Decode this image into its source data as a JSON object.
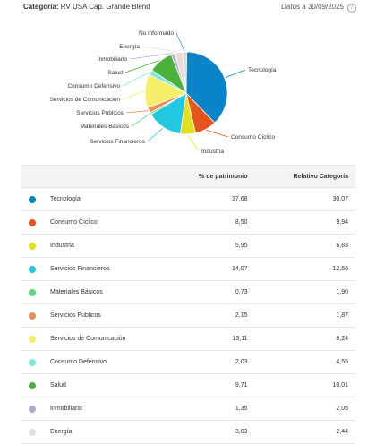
{
  "header": {
    "category_label": "Categoría:",
    "category_value": "RV USA Cap. Grande Blend",
    "date_text": "Datos a 30/09/2025",
    "help_glyph": "?"
  },
  "table": {
    "headers": [
      "",
      "",
      "% de patrimonio",
      "Relativo Categoría"
    ],
    "rows": [
      {
        "name": "Tecnología",
        "pct": "37,68",
        "rel": "30,07",
        "color": "#0a84c8"
      },
      {
        "name": "Consumo Cíclico",
        "pct": "8,50",
        "rel": "9,94",
        "color": "#e5541c"
      },
      {
        "name": "Industria",
        "pct": "5,95",
        "rel": "6,83",
        "color": "#e5e01f"
      },
      {
        "name": "Servicios Financieros",
        "pct": "14,07",
        "rel": "12,56",
        "color": "#22c7e2"
      },
      {
        "name": "Materiales Básicos",
        "pct": "0,73",
        "rel": "1,90",
        "color": "#5fd97b"
      },
      {
        "name": "Servicios Públicos",
        "pct": "2,15",
        "rel": "1,87",
        "color": "#f08b5a"
      },
      {
        "name": "Servicios de Comunicación",
        "pct": "13,11",
        "rel": "8,24",
        "color": "#f6ee66"
      },
      {
        "name": "Consumo Defensivo",
        "pct": "2,03",
        "rel": "4,55",
        "color": "#7ee8d8"
      },
      {
        "name": "Salud",
        "pct": "9,71",
        "rel": "10,01",
        "color": "#49b23a"
      },
      {
        "name": "Inmobiliario",
        "pct": "1,35",
        "rel": "2,05",
        "color": "#b3a6d6"
      },
      {
        "name": "Energía",
        "pct": "3,03",
        "rel": "2,44",
        "color": "#eadcd2"
      }
    ]
  },
  "chart_data": {
    "type": "pie",
    "title": "",
    "categories": [
      "Tecnología",
      "Consumo Cíclico",
      "Industria",
      "Servicios Financieros",
      "Materiales Básicos",
      "Servicios Públicos",
      "Servicios de Comunicación",
      "Consumo Defensivo",
      "Salud",
      "Inmobiliario",
      "Energía",
      "No informado"
    ],
    "values": [
      37.68,
      8.5,
      5.95,
      14.07,
      0.73,
      2.15,
      13.11,
      2.03,
      9.71,
      1.35,
      3.03,
      1.69
    ],
    "colors": [
      "#0a84c8",
      "#e5541c",
      "#e5e01f",
      "#22c7e2",
      "#5fd97b",
      "#f08b5a",
      "#f6ee66",
      "#7ee8d8",
      "#49b23a",
      "#b3a6d6",
      "#eadcd2",
      "#dcdcdc"
    ],
    "legend": "none"
  }
}
